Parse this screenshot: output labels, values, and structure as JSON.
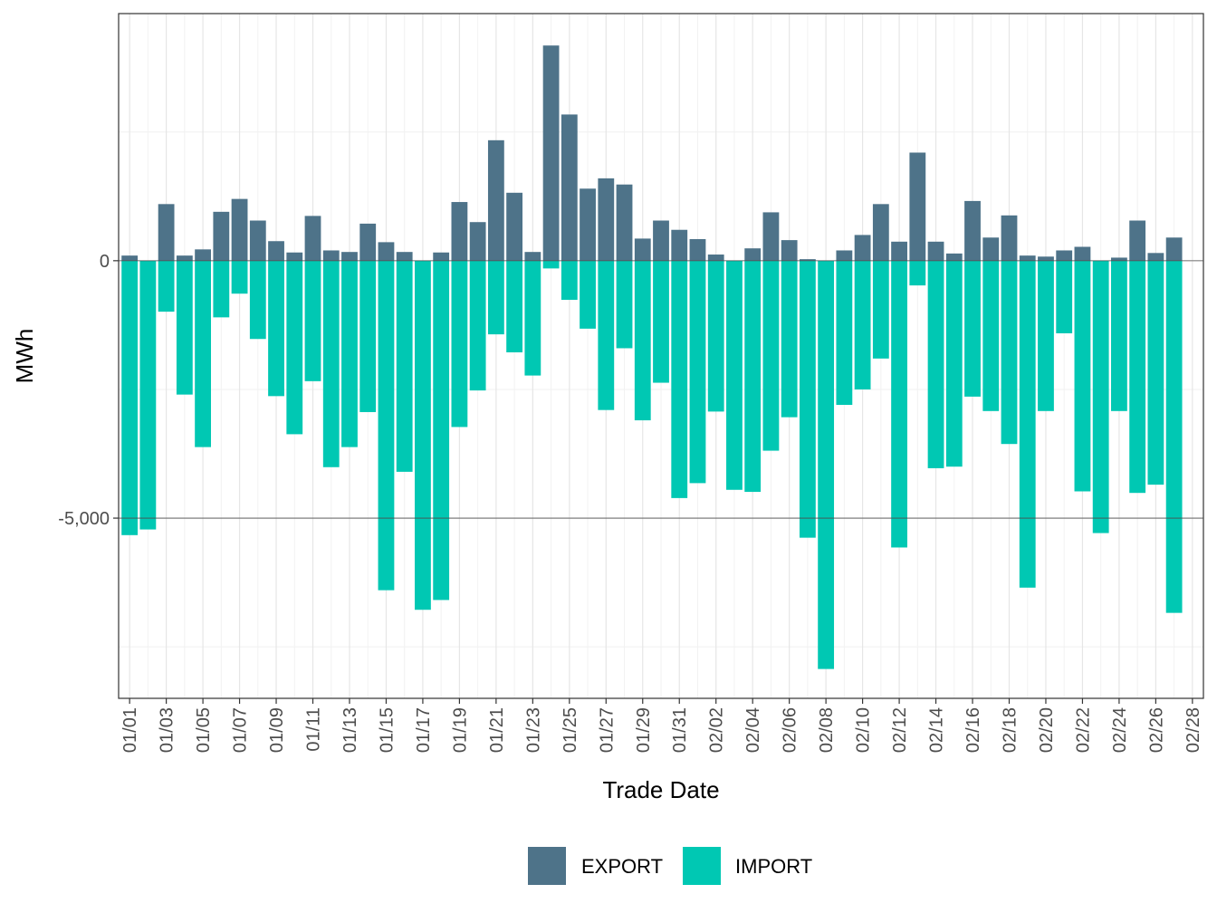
{
  "chart_data": {
    "type": "bar",
    "stacked": true,
    "xlabel": "Trade Date",
    "ylabel": "MWh",
    "ylim": [
      -8500,
      4800
    ],
    "y_ticks": [
      0,
      -5000
    ],
    "y_tick_labels": [
      "0",
      "-5,000"
    ],
    "grid": true,
    "legend_position": "bottom",
    "categories": [
      "01/01",
      "01/02",
      "01/03",
      "01/04",
      "01/05",
      "01/06",
      "01/07",
      "01/08",
      "01/09",
      "01/10",
      "01/11",
      "01/12",
      "01/13",
      "01/14",
      "01/15",
      "01/16",
      "01/17",
      "01/18",
      "01/19",
      "01/20",
      "01/21",
      "01/22",
      "01/23",
      "01/24",
      "01/25",
      "01/26",
      "01/27",
      "01/28",
      "01/29",
      "01/30",
      "01/31",
      "02/01",
      "02/02",
      "02/03",
      "02/04",
      "02/05",
      "02/06",
      "02/07",
      "02/08",
      "02/09",
      "02/10",
      "02/11",
      "02/12",
      "02/13",
      "02/14",
      "02/15",
      "02/16",
      "02/17",
      "02/18",
      "02/19",
      "02/20",
      "02/21",
      "02/22",
      "02/23",
      "02/24",
      "02/25",
      "02/26",
      "02/27",
      "02/28"
    ],
    "x_tick_labels": [
      "01/01",
      "01/03",
      "01/05",
      "01/07",
      "01/09",
      "01/11",
      "01/13",
      "01/15",
      "01/17",
      "01/19",
      "01/21",
      "01/23",
      "01/25",
      "01/27",
      "01/29",
      "01/31",
      "02/02",
      "02/04",
      "02/06",
      "02/08",
      "02/10",
      "02/12",
      "02/14",
      "02/16",
      "02/18",
      "02/20",
      "02/22",
      "02/24",
      "02/26",
      "02/28"
    ],
    "series": [
      {
        "name": "EXPORT",
        "color": "#4e7389",
        "values": [
          100,
          0,
          1100,
          100,
          220,
          950,
          1200,
          780,
          380,
          160,
          870,
          200,
          170,
          720,
          360,
          170,
          0,
          160,
          1140,
          750,
          2340,
          1320,
          170,
          4180,
          2840,
          1400,
          1600,
          1480,
          430,
          780,
          600,
          420,
          120,
          0,
          240,
          940,
          400,
          30,
          0,
          200,
          500,
          1100,
          370,
          2100,
          370,
          140,
          1160,
          450,
          880,
          100,
          80,
          200,
          270,
          0,
          60,
          780,
          150,
          450,
          0
        ]
      },
      {
        "name": "IMPORT",
        "color": "#00c8b3",
        "values": [
          -5330,
          -5220,
          -990,
          -2600,
          -3620,
          -1100,
          -640,
          -1520,
          -2630,
          -3370,
          -2340,
          -4010,
          -3620,
          -2940,
          -6400,
          -4100,
          -6780,
          -6590,
          -3230,
          -2520,
          -1430,
          -1780,
          -2230,
          -150,
          -760,
          -1320,
          -2900,
          -1700,
          -3100,
          -2370,
          -4610,
          -4320,
          -2930,
          -4450,
          -4490,
          -3690,
          -3040,
          -5380,
          -7930,
          -2800,
          -2500,
          -1900,
          -5570,
          -480,
          -4030,
          -4000,
          -2640,
          -2920,
          -3560,
          -6350,
          -2920,
          -1410,
          -4480,
          -5290,
          -2920,
          -4510,
          -4350,
          -6840,
          0
        ]
      }
    ]
  }
}
